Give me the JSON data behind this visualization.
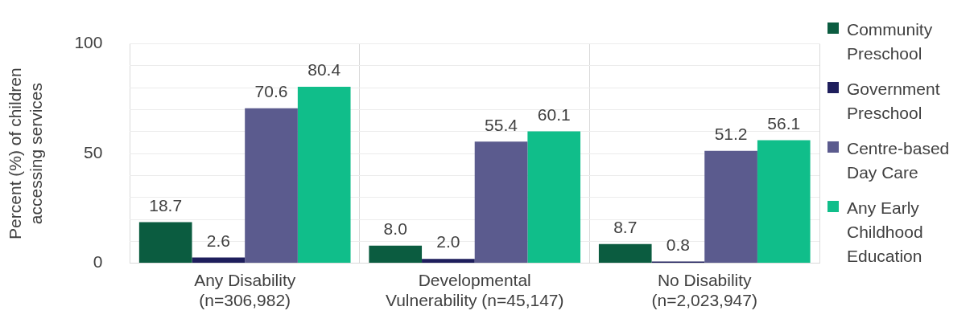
{
  "chart_data": {
    "type": "bar",
    "ylabel": "Percent (%) of children accessing services",
    "categories": [
      "Any Disability (n=306,982)",
      "Developmental Vulnerability (n=45,147)",
      "No Disability (n=2,023,947)"
    ],
    "series": [
      {
        "name": "Community Preschool",
        "color": "#0b5c40",
        "values": [
          18.7,
          8.0,
          8.7
        ],
        "value_labels": [
          "18.7",
          "8.0",
          "8.7"
        ]
      },
      {
        "name": "Government Preschool",
        "color": "#1e1e5c",
        "values": [
          2.6,
          2.0,
          0.8
        ],
        "value_labels": [
          "2.6",
          "2.0",
          "0.8"
        ]
      },
      {
        "name": "Centre-based Day Care",
        "color": "#5b5b8e",
        "values": [
          70.6,
          55.4,
          51.2
        ],
        "value_labels": [
          "70.6",
          "55.4",
          "51.2"
        ]
      },
      {
        "name": "Any Early Childhood Education",
        "color": "#10be8a",
        "values": [
          80.4,
          60.1,
          56.1
        ],
        "value_labels": [
          "80.4",
          "60.1",
          "56.1"
        ]
      }
    ],
    "ylim": [
      0,
      100
    ],
    "yticks": [
      0,
      {
        "value": 10,
        "label": null
      },
      {
        "value": 20,
        "label": null
      },
      {
        "value": 30,
        "label": null
      },
      {
        "value": 40,
        "label": null
      },
      50,
      {
        "value": 60,
        "label": null
      },
      {
        "value": 70,
        "label": null
      },
      {
        "value": 80,
        "label": null
      },
      {
        "value": 90,
        "label": null
      },
      100
    ],
    "grid": true,
    "legend": "right"
  }
}
